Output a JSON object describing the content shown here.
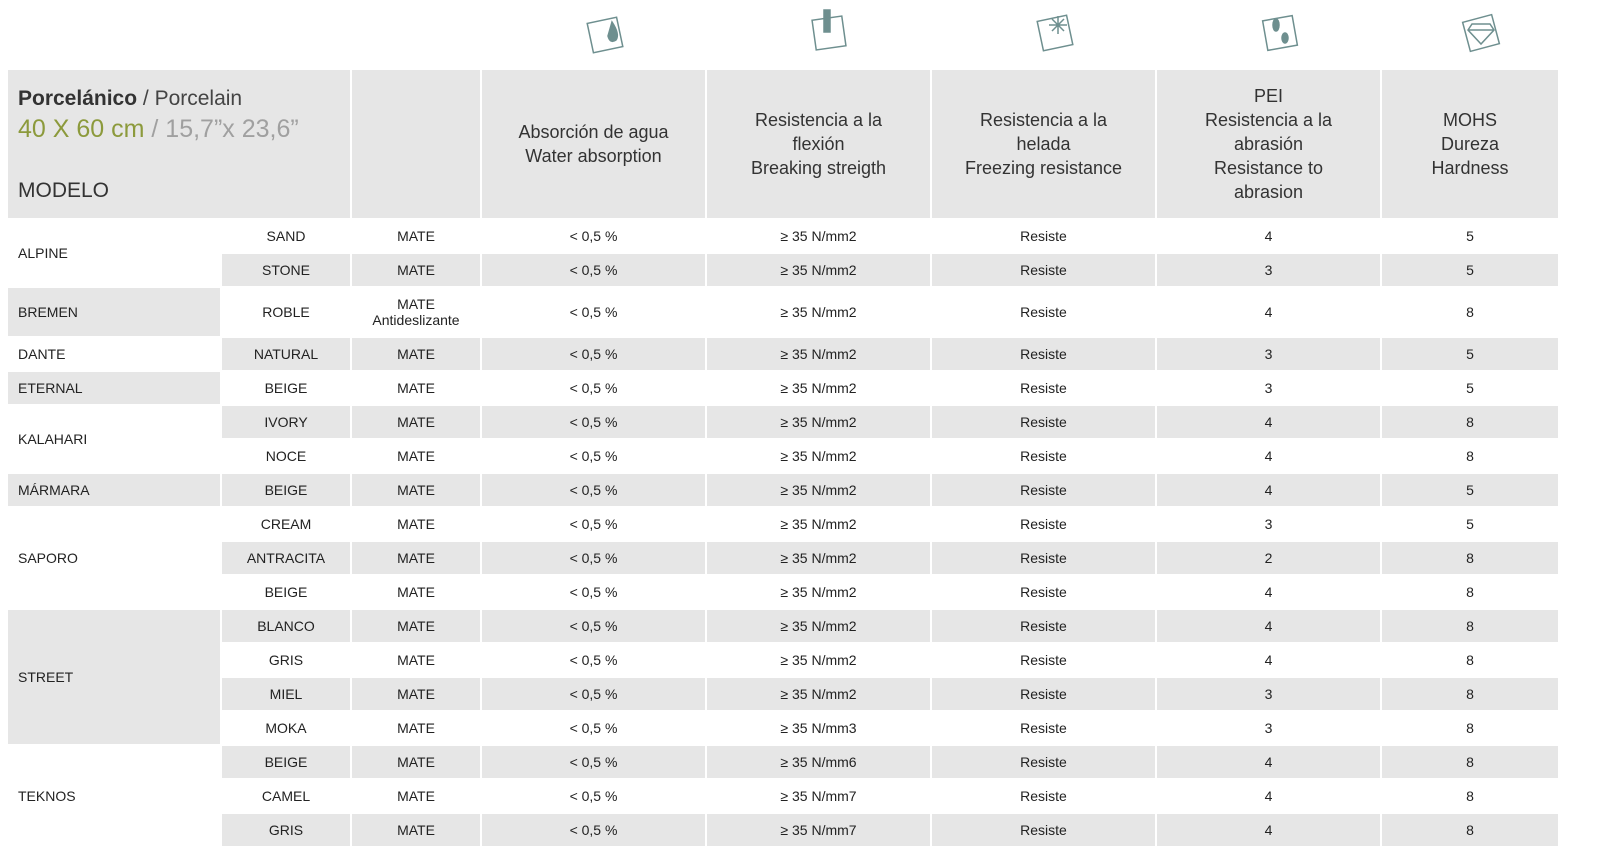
{
  "header": {
    "title_bold": "Porcelánico",
    "title_rest": " / Porcelain",
    "size_green": "40 X 60 cm",
    "size_gray": " / 15,7”x 23,6”",
    "modelo": "MODELO",
    "columns": [
      "Absorción de agua\nWater absorption",
      "Resistencia a la\nflexión\nBreaking streigth",
      "Resistencia a la\nhelada\nFreezing resistance",
      "PEI\nResistencia a la\nabrasión\nResistance to\nabrasion",
      "MOHS\nDureza\nHardness"
    ]
  },
  "groups": [
    {
      "model": "ALPINE",
      "rows": [
        [
          "SAND",
          "MATE",
          "< 0,5 %",
          "≥ 35 N/mm2",
          "Resiste",
          4,
          5
        ],
        [
          "STONE",
          "MATE",
          "< 0,5 %",
          "≥ 35 N/mm2",
          "Resiste",
          3,
          5
        ]
      ]
    },
    {
      "model": "BREMEN",
      "rows": [
        [
          "ROBLE",
          "MATE\nAntideslizante",
          "< 0,5 %",
          "≥ 35 N/mm2",
          "Resiste",
          4,
          8
        ]
      ]
    },
    {
      "model": "DANTE",
      "rows": [
        [
          "NATURAL",
          "MATE",
          "< 0,5 %",
          "≥ 35 N/mm2",
          "Resiste",
          3,
          5
        ]
      ]
    },
    {
      "model": "ETERNAL",
      "rows": [
        [
          "BEIGE",
          "MATE",
          "< 0,5 %",
          "≥ 35 N/mm2",
          "Resiste",
          3,
          5
        ]
      ]
    },
    {
      "model": "KALAHARI",
      "rows": [
        [
          "IVORY",
          "MATE",
          "< 0,5 %",
          "≥ 35 N/mm2",
          "Resiste",
          4,
          8
        ],
        [
          "NOCE",
          "MATE",
          "< 0,5 %",
          "≥ 35 N/mm2",
          "Resiste",
          4,
          8
        ]
      ]
    },
    {
      "model": "MÁRMARA",
      "rows": [
        [
          "BEIGE",
          "MATE",
          "< 0,5 %",
          "≥ 35 N/mm2",
          "Resiste",
          4,
          5
        ]
      ]
    },
    {
      "model": "SAPORO",
      "rows": [
        [
          "CREAM",
          "MATE",
          "< 0,5 %",
          "≥ 35 N/mm2",
          "Resiste",
          3,
          5
        ],
        [
          "ANTRACITA",
          "MATE",
          "< 0,5 %",
          "≥ 35 N/mm2",
          "Resiste",
          2,
          8
        ],
        [
          "BEIGE",
          "MATE",
          "< 0,5 %",
          "≥ 35 N/mm2",
          "Resiste",
          4,
          8
        ]
      ]
    },
    {
      "model": "STREET",
      "rows": [
        [
          "BLANCO",
          "MATE",
          "< 0,5 %",
          "≥ 35 N/mm2",
          "Resiste",
          4,
          8
        ],
        [
          "GRIS",
          "MATE",
          "< 0,5 %",
          "≥ 35 N/mm2",
          "Resiste",
          4,
          8
        ],
        [
          "MIEL",
          "MATE",
          "< 0,5 %",
          "≥ 35 N/mm2",
          "Resiste",
          3,
          8
        ],
        [
          "MOKA",
          "MATE",
          "< 0,5 %",
          "≥ 35 N/mm3",
          "Resiste",
          3,
          8
        ]
      ]
    },
    {
      "model": "TEKNOS",
      "rows": [
        [
          "BEIGE",
          "MATE",
          "< 0,5 %",
          "≥ 35 N/mm6",
          "Resiste",
          4,
          8
        ],
        [
          "CAMEL",
          "MATE",
          "< 0,5 %",
          "≥ 35 N/mm7",
          "Resiste",
          4,
          8
        ],
        [
          "GRIS",
          "MATE",
          "< 0,5 %",
          "≥ 35 N/mm7",
          "Resiste",
          4,
          8
        ]
      ]
    }
  ]
}
